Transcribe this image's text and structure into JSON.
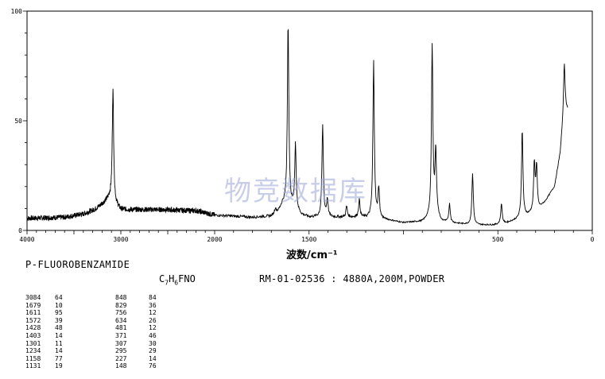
{
  "chart_data": {
    "type": "line",
    "xlabel": "波数/cm⁻¹",
    "x_ticks": [
      "4000",
      "3000",
      "2000",
      "1500",
      "500",
      "0"
    ],
    "y_ticks": [
      "0",
      "50",
      "100"
    ],
    "xlim": [
      4000,
      0
    ],
    "ylim": [
      0,
      100
    ],
    "grid": false,
    "peaks": [
      {
        "x": 3084,
        "y": 64
      },
      {
        "x": 1679,
        "y": 10
      },
      {
        "x": 1611,
        "y": 95
      },
      {
        "x": 1572,
        "y": 39
      },
      {
        "x": 1428,
        "y": 48
      },
      {
        "x": 1403,
        "y": 14
      },
      {
        "x": 1301,
        "y": 11
      },
      {
        "x": 1234,
        "y": 14
      },
      {
        "x": 1158,
        "y": 77
      },
      {
        "x": 1131,
        "y": 19
      },
      {
        "x": 848,
        "y": 84
      },
      {
        "x": 829,
        "y": 36
      },
      {
        "x": 756,
        "y": 12
      },
      {
        "x": 634,
        "y": 26
      },
      {
        "x": 481,
        "y": 12
      },
      {
        "x": 371,
        "y": 46
      },
      {
        "x": 307,
        "y": 30
      },
      {
        "x": 295,
        "y": 29
      },
      {
        "x": 227,
        "y": 14
      },
      {
        "x": 148,
        "y": 76
      }
    ]
  },
  "watermark": "物竞数据库",
  "compound_name": "P-FLUOROBENZAMIDE",
  "formula": {
    "c": "C",
    "c_n": "7",
    "h": "H",
    "h_n": "6",
    "rest": "FNO"
  },
  "spectrum_info": "RM-01-02536 : 4880A,200M,POWDER",
  "peak_table": [
    [
      "3084",
      "64",
      "848",
      "84"
    ],
    [
      "1679",
      "10",
      "829",
      "36"
    ],
    [
      "1611",
      "95",
      "756",
      "12"
    ],
    [
      "1572",
      "39",
      "634",
      "26"
    ],
    [
      "1428",
      "48",
      "481",
      "12"
    ],
    [
      "1403",
      "14",
      "371",
      "46"
    ],
    [
      "1301",
      "11",
      "307",
      "30"
    ],
    [
      "1234",
      "14",
      "295",
      "29"
    ],
    [
      "1158",
      "77",
      "227",
      "14"
    ],
    [
      "1131",
      "19",
      "148",
      "76"
    ]
  ]
}
